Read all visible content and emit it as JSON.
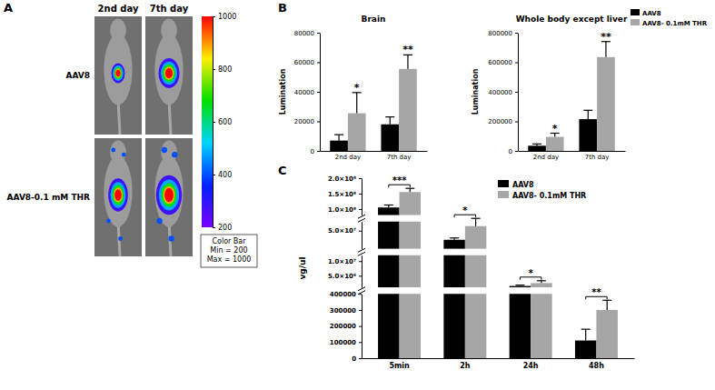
{
  "chart_data": [
    {
      "type": "image",
      "annotations": [
        "A"
      ],
      "categories": [
        "2nd day",
        "7th day"
      ],
      "rows": [
        "AAV8",
        "AAV8-0.1 mM THR"
      ],
      "colorbar": {
        "range": [
          200,
          1000
        ],
        "ticks": [
          200,
          400,
          600,
          800,
          1000
        ],
        "label": [
          "Color Bar",
          "Min = 200",
          "Max = 1000"
        ]
      }
    },
    {
      "type": "bar",
      "annotations": [
        "B"
      ],
      "title": "Brain",
      "ylabel": "Lumination",
      "categories": [
        "2nd day",
        "7th day"
      ],
      "series": [
        {
          "color": "#000000",
          "values": [
            7000,
            18000
          ],
          "errors": [
            4000,
            5000
          ]
        },
        {
          "color": "#a6a6a6",
          "values": [
            25500,
            55500
          ],
          "errors": [
            14000,
            9500
          ],
          "significance": [
            "*",
            "**"
          ]
        }
      ],
      "ylim": [
        0,
        80000
      ],
      "yticks": [
        0,
        20000,
        40000,
        60000,
        80000
      ]
    },
    {
      "type": "bar",
      "title": "Whole body except liver",
      "ylabel": "Lumination",
      "categories": [
        "2nd day",
        "7th day"
      ],
      "series": [
        {
          "name": "AAV8",
          "color": "#000000",
          "values": [
            35000,
            215000
          ],
          "errors": [
            12000,
            60000
          ]
        },
        {
          "name": "AAV8- 0.1mM THR",
          "color": "#a6a6a6",
          "values": [
            95000,
            635000
          ],
          "errors": [
            25000,
            105000
          ],
          "significance": [
            "*",
            "**"
          ]
        }
      ],
      "ylim": [
        0,
        800000
      ],
      "yticks": [
        0,
        200000,
        400000,
        600000,
        800000
      ],
      "legend": "top-right"
    },
    {
      "type": "bar",
      "annotations": [
        "C"
      ],
      "ylabel": "vg/ul",
      "categories": [
        "5min",
        "2h",
        "24h",
        "48h"
      ],
      "series": [
        {
          "name": "AAV8",
          "color": "#000000",
          "values": [
            105000000,
            40000000,
            1500000,
            110000
          ],
          "errors": [
            8000000,
            2000000,
            300000,
            70000
          ]
        },
        {
          "name": "AAV8- 0.1mM THR",
          "color": "#a6a6a6",
          "values": [
            155000000,
            55000000,
            2500000,
            300000
          ],
          "errors": [
            12000000,
            8000000,
            800000,
            60000
          ]
        }
      ],
      "significance": [
        "***",
        "*",
        "*",
        "**"
      ],
      "y_segments": [
        {
          "ylim": [
            0,
            400000
          ],
          "yticks": [
            0,
            100000,
            200000,
            300000,
            400000
          ]
        },
        {
          "ylim": [
            1000000,
            12000000
          ],
          "yticks": [
            {
              "value": 5000000,
              "label": "5.0×10⁶"
            },
            {
              "value": 10000000,
              "label": "1.0×10⁷"
            }
          ]
        },
        {
          "ylim": [
            30000000,
            60000000
          ],
          "yticks": [
            {
              "value": 50000000,
              "label": "5.0×10⁷"
            }
          ]
        },
        {
          "ylim": [
            80000000,
            200000000
          ],
          "yticks": [
            {
              "value": 100000000,
              "label": "1.0×10⁸"
            },
            {
              "value": 150000000,
              "label": "1.5×10⁸"
            },
            {
              "value": 200000000,
              "label": "2.0×10⁸"
            }
          ]
        }
      ],
      "legend": "top-right"
    }
  ]
}
